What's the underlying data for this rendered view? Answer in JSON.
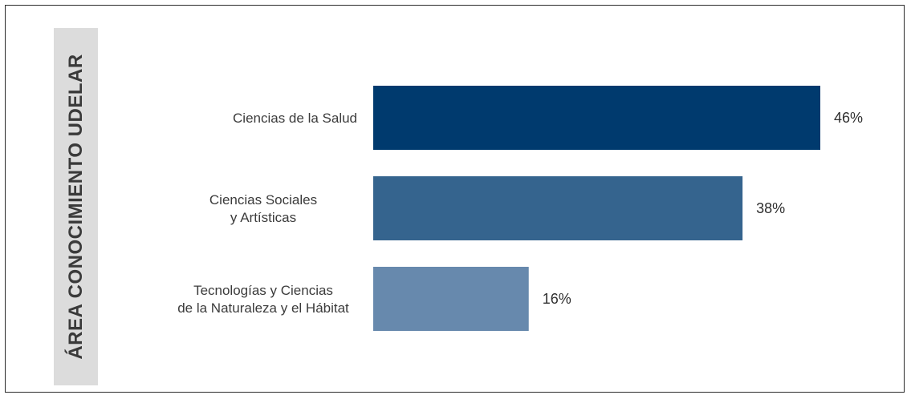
{
  "chart_data": {
    "type": "bar",
    "orientation": "horizontal",
    "ylabel": "ÁREA CONOCIMIENTO UDELAR",
    "categories": [
      [
        "Ciencias de la Salud"
      ],
      [
        "Ciencias Sociales",
        "y Artísticas"
      ],
      [
        "Tecnologías y Ciencias",
        "de la Naturaleza y el Hábitat"
      ]
    ],
    "values": [
      46,
      38,
      16
    ],
    "value_labels": [
      "46%",
      "38%",
      "16%"
    ],
    "unit": "%",
    "xlim": [
      0,
      46
    ],
    "colors": [
      "#003a6e",
      "#35648e",
      "#6789ad"
    ],
    "grid": false,
    "legend": "none"
  }
}
